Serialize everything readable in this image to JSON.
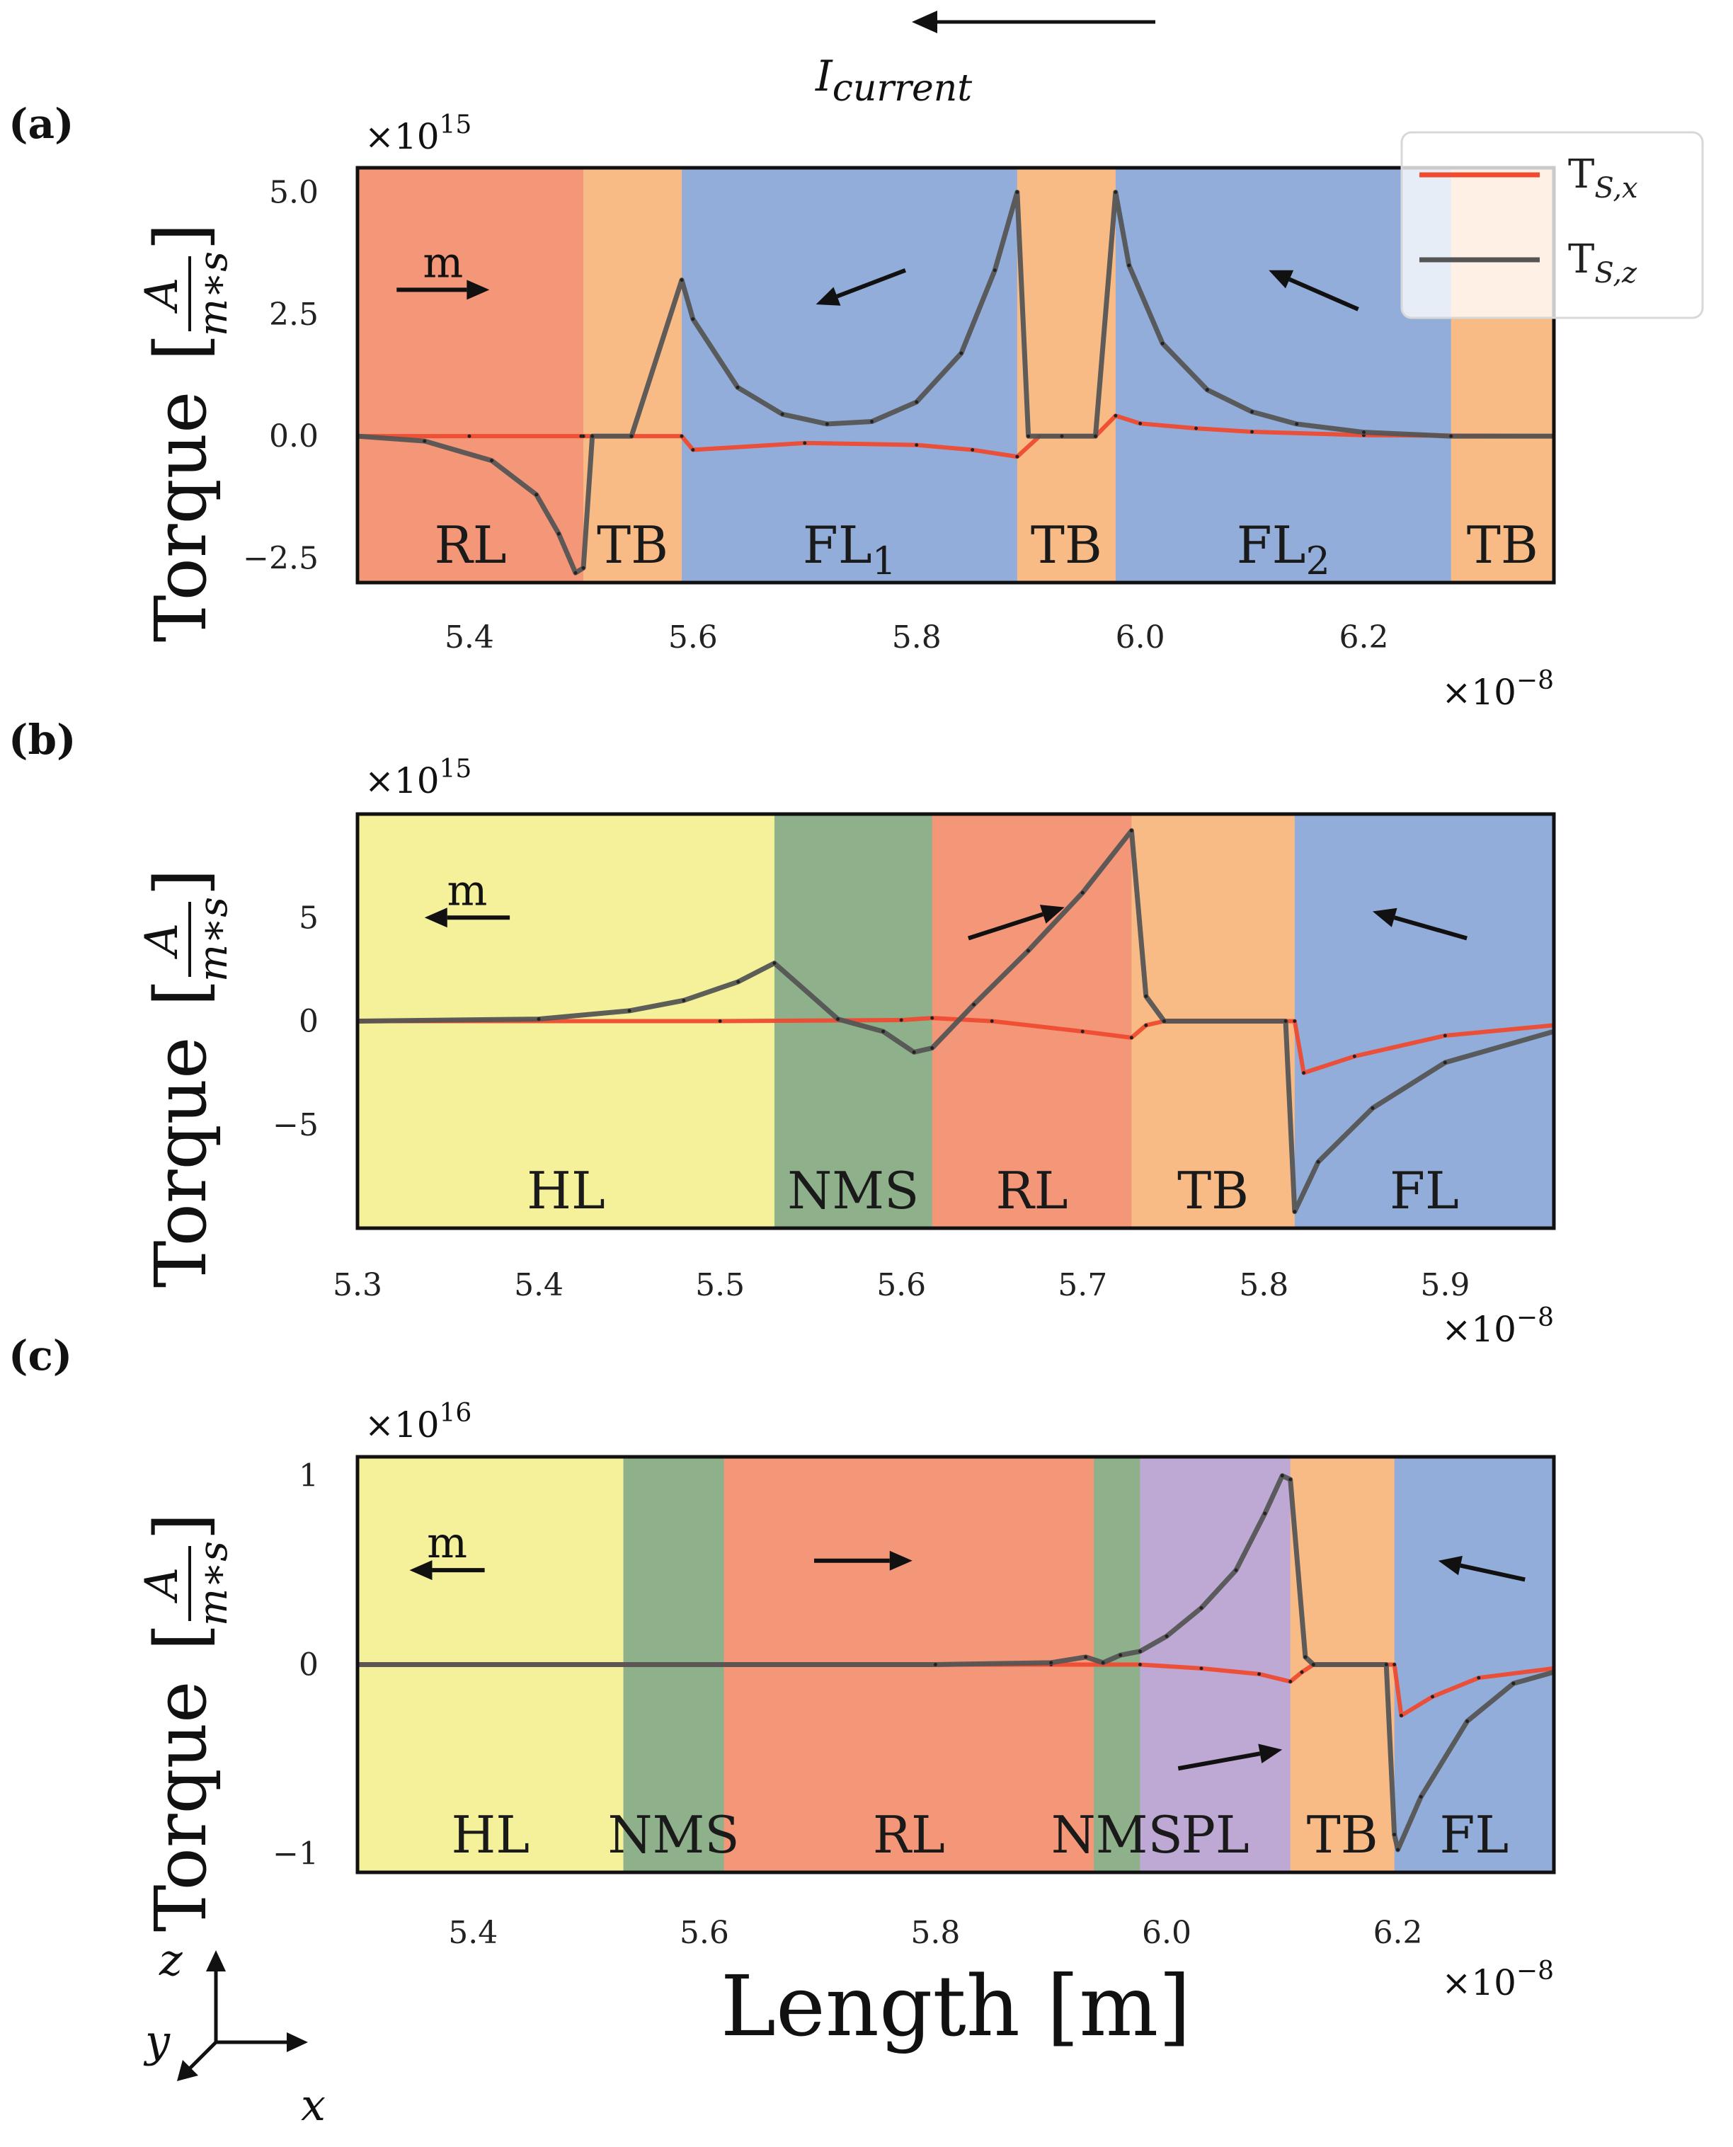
{
  "current_label": "I",
  "current_sub": "current",
  "units": {
    "num": "A",
    "den": "m∗s"
  },
  "colors": {
    "HL": "#f5f19a",
    "NMS": "#8eb08a",
    "RL": "#f49678",
    "TB": "#f9bb85",
    "FL": "#93adda",
    "PL": "#bea9d4",
    "tsx": "#ee4b30",
    "tsz": "#555555"
  },
  "chart_data": [
    {
      "type": "line",
      "panel": "(a)",
      "ylabel": "Torque",
      "xlabel": "",
      "exp_y": "15",
      "exp_x": "−8",
      "xlim": [
        5.3,
        6.37
      ],
      "ylim": [
        -3.0,
        5.5
      ],
      "xticks": [
        5.4,
        5.6,
        5.8,
        6.0,
        6.2
      ],
      "xtick_labels": [
        "5.4",
        "5.6",
        "5.8",
        "6.0",
        "6.2"
      ],
      "yticks": [
        -2.5,
        0.0,
        2.5,
        5.0
      ],
      "ytick_labels": [
        "−2.5",
        "0.0",
        "2.5",
        "5.0"
      ],
      "legend": {
        "position": "top-right",
        "entries": [
          "T",
          "T"
        ],
        "subs": [
          "S,x",
          "S,z"
        ]
      },
      "regions": [
        {
          "label": "RL",
          "sub": "",
          "start": 5.3,
          "end": 5.502,
          "type": "RL"
        },
        {
          "label": "TB",
          "sub": "",
          "start": 5.502,
          "end": 5.59,
          "type": "TB"
        },
        {
          "label": "FL",
          "sub": "1",
          "start": 5.59,
          "end": 5.89,
          "type": "FL"
        },
        {
          "label": "TB",
          "sub": "",
          "start": 5.89,
          "end": 5.978,
          "type": "TB"
        },
        {
          "label": "FL",
          "sub": "2",
          "start": 5.978,
          "end": 6.278,
          "type": "FL"
        },
        {
          "label": "TB",
          "sub": "",
          "start": 6.278,
          "end": 6.37,
          "type": "TB"
        }
      ],
      "arrows": [
        {
          "label": "m",
          "x1": 5.335,
          "y1": 3.0,
          "x2": 5.418,
          "y2": 3.0
        },
        {
          "label": "",
          "x1": 5.79,
          "y1": 3.4,
          "x2": 5.71,
          "y2": 2.7
        },
        {
          "label": "",
          "x1": 6.195,
          "y1": 2.6,
          "x2": 6.115,
          "y2": 3.4
        }
      ],
      "series": [
        {
          "name": "T_S,x",
          "x": [
            5.3,
            5.4,
            5.5,
            5.502,
            5.59,
            5.6,
            5.7,
            5.8,
            5.85,
            5.89,
            5.91,
            5.96,
            5.978,
            6.0,
            6.05,
            6.1,
            6.2,
            6.37
          ],
          "y": [
            0,
            0,
            0,
            0,
            0,
            -0.28,
            -0.14,
            -0.18,
            -0.28,
            -0.42,
            0,
            0,
            0.42,
            0.26,
            0.16,
            0.09,
            0.02,
            0
          ]
        },
        {
          "name": "T_S,z",
          "x": [
            5.3,
            5.36,
            5.42,
            5.46,
            5.48,
            5.495,
            5.502,
            5.51,
            5.545,
            5.59,
            5.6,
            5.64,
            5.68,
            5.72,
            5.76,
            5.8,
            5.84,
            5.87,
            5.89,
            5.9,
            5.93,
            5.96,
            5.978,
            5.99,
            6.02,
            6.06,
            6.1,
            6.14,
            6.2,
            6.278,
            6.37
          ],
          "y": [
            0,
            -0.1,
            -0.5,
            -1.2,
            -2.0,
            -2.8,
            -2.7,
            0,
            0,
            3.2,
            2.4,
            1.0,
            0.45,
            0.25,
            0.3,
            0.7,
            1.7,
            3.4,
            5.0,
            0,
            0,
            0,
            5.0,
            3.5,
            1.9,
            0.95,
            0.5,
            0.25,
            0.08,
            0,
            0
          ]
        }
      ]
    },
    {
      "type": "line",
      "panel": "(b)",
      "ylabel": "Torque",
      "xlabel": "",
      "exp_y": "15",
      "exp_x": "−8",
      "xlim": [
        5.3,
        5.96
      ],
      "ylim": [
        -10.0,
        10.0
      ],
      "xticks": [
        5.3,
        5.4,
        5.5,
        5.6,
        5.7,
        5.8,
        5.9
      ],
      "xtick_labels": [
        "5.3",
        "5.4",
        "5.5",
        "5.6",
        "5.7",
        "5.8",
        "5.9"
      ],
      "yticks": [
        -5,
        0,
        5
      ],
      "ytick_labels": [
        "−5",
        "0",
        "5"
      ],
      "regions": [
        {
          "label": "HL",
          "sub": "",
          "start": 5.3,
          "end": 5.53,
          "type": "HL"
        },
        {
          "label": "NMS",
          "sub": "",
          "start": 5.53,
          "end": 5.617,
          "type": "NMS"
        },
        {
          "label": "RL",
          "sub": "",
          "start": 5.617,
          "end": 5.727,
          "type": "RL"
        },
        {
          "label": "TB",
          "sub": "",
          "start": 5.727,
          "end": 5.817,
          "type": "TB"
        },
        {
          "label": "FL",
          "sub": "",
          "start": 5.817,
          "end": 5.96,
          "type": "FL"
        }
      ],
      "arrows": [
        {
          "label": "m",
          "x1": 5.384,
          "y1": 5.0,
          "x2": 5.337,
          "y2": 5.0
        },
        {
          "label": "",
          "x1": 5.637,
          "y1": 4.0,
          "x2": 5.69,
          "y2": 5.5
        },
        {
          "label": "",
          "x1": 5.912,
          "y1": 4.0,
          "x2": 5.86,
          "y2": 5.3
        }
      ],
      "series": [
        {
          "name": "T_S,x",
          "x": [
            5.3,
            5.5,
            5.6,
            5.617,
            5.65,
            5.7,
            5.727,
            5.735,
            5.745,
            5.817,
            5.822,
            5.85,
            5.9,
            5.96
          ],
          "y": [
            0,
            0,
            0.05,
            0.15,
            0,
            -0.5,
            -0.8,
            -0.2,
            0,
            0,
            -2.5,
            -1.7,
            -0.7,
            -0.2
          ]
        },
        {
          "name": "T_S,z",
          "x": [
            5.3,
            5.4,
            5.45,
            5.48,
            5.51,
            5.53,
            5.565,
            5.59,
            5.607,
            5.617,
            5.64,
            5.67,
            5.7,
            5.727,
            5.735,
            5.745,
            5.812,
            5.817,
            5.83,
            5.86,
            5.9,
            5.96
          ],
          "y": [
            0,
            0.1,
            0.5,
            1.0,
            1.9,
            2.8,
            0.1,
            -0.5,
            -1.5,
            -1.3,
            0.8,
            3.4,
            6.2,
            9.2,
            1.2,
            0,
            0,
            -9.2,
            -6.8,
            -4.2,
            -2.0,
            -0.5
          ]
        }
      ]
    },
    {
      "type": "line",
      "panel": "(c)",
      "ylabel": "Torque",
      "xlabel": "Length [m]",
      "exp_y": "16",
      "exp_x": "−8",
      "xlim": [
        5.3,
        6.335
      ],
      "ylim": [
        -1.1,
        1.1
      ],
      "xticks": [
        5.4,
        5.6,
        5.8,
        6.0,
        6.2
      ],
      "xtick_labels": [
        "5.4",
        "5.6",
        "5.8",
        "6.0",
        "6.2"
      ],
      "yticks": [
        -1,
        0,
        1
      ],
      "ytick_labels": [
        "−1",
        "0",
        "1"
      ],
      "regions": [
        {
          "label": "HL",
          "sub": "",
          "start": 5.3,
          "end": 5.53,
          "type": "HL"
        },
        {
          "label": "NMS",
          "sub": "",
          "start": 5.53,
          "end": 5.617,
          "type": "NMS"
        },
        {
          "label": "RL",
          "sub": "",
          "start": 5.617,
          "end": 5.937,
          "type": "RL"
        },
        {
          "label": "NMS",
          "sub": "",
          "start": 5.937,
          "end": 5.977,
          "type": "NMS"
        },
        {
          "label": "PL",
          "sub": "",
          "start": 5.977,
          "end": 6.107,
          "type": "PL"
        },
        {
          "label": "TB",
          "sub": "",
          "start": 6.107,
          "end": 6.197,
          "type": "TB"
        },
        {
          "label": "FL",
          "sub": "",
          "start": 6.197,
          "end": 6.335,
          "type": "FL"
        }
      ],
      "arrows": [
        {
          "label": "m",
          "x1": 5.41,
          "y1": 0.5,
          "x2": 5.345,
          "y2": 0.5
        },
        {
          "label": "",
          "x1": 5.695,
          "y1": 0.55,
          "x2": 5.78,
          "y2": 0.55
        },
        {
          "label": "",
          "x1": 6.31,
          "y1": 0.45,
          "x2": 6.235,
          "y2": 0.55
        },
        {
          "label": "",
          "x1": 6.01,
          "y1": -0.55,
          "x2": 6.1,
          "y2": -0.45
        }
      ],
      "series": [
        {
          "name": "T_S,x",
          "x": [
            5.3,
            5.9,
            5.977,
            6.03,
            6.08,
            6.107,
            6.117,
            6.127,
            6.197,
            6.203,
            6.23,
            6.27,
            6.335
          ],
          "y": [
            0,
            0,
            0,
            -0.02,
            -0.05,
            -0.09,
            -0.04,
            0,
            0,
            -0.27,
            -0.17,
            -0.07,
            -0.02
          ]
        },
        {
          "name": "T_S,z",
          "x": [
            5.3,
            5.8,
            5.9,
            5.93,
            5.945,
            5.96,
            5.977,
            6.0,
            6.03,
            6.06,
            6.085,
            6.1,
            6.107,
            6.12,
            6.127,
            6.19,
            6.197,
            6.2,
            6.22,
            6.26,
            6.3,
            6.335
          ],
          "y": [
            0,
            0,
            0.01,
            0.04,
            0.01,
            0.05,
            0.07,
            0.15,
            0.3,
            0.5,
            0.8,
            1.0,
            0.98,
            0.04,
            0,
            0,
            -0.9,
            -0.98,
            -0.7,
            -0.3,
            -0.1,
            -0.04
          ]
        }
      ]
    }
  ],
  "axes_triad": {
    "z": "z",
    "y": "y",
    "x": "x"
  }
}
